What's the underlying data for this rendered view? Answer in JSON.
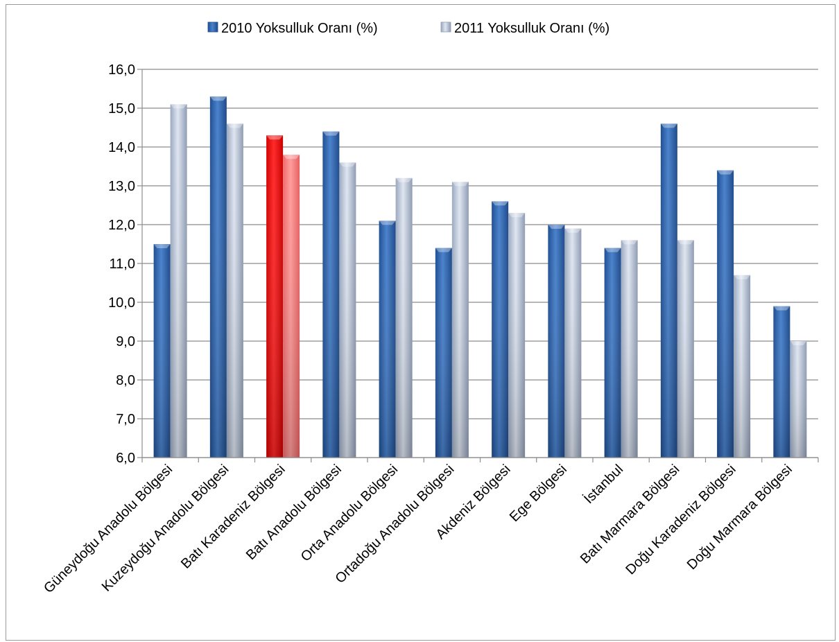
{
  "chart_data": {
    "type": "bar",
    "title": "",
    "xlabel": "",
    "ylabel": "",
    "ylim": [
      6,
      16
    ],
    "y_ticks": [
      "6,0",
      "7,0",
      "8,0",
      "9,0",
      "10,0",
      "11,0",
      "12,0",
      "13,0",
      "14,0",
      "15,0",
      "16,0"
    ],
    "grid": true,
    "legend_position": "top",
    "categories": [
      "Güneydoğu Anadolu Bölgesi",
      "Kuzeydoğu Anadolu Bölgesi",
      "Batı Karadeniz Bölgesi",
      "Batı Anadolu Bölgesi",
      "Orta Anadolu Bölgesi",
      "Ortadoğu Anadolu Bölgesi",
      "Akdeniz Bölgesi",
      "Ege Bölgesi",
      "İstanbul",
      "Batı Marmara Bölgesi",
      "Doğu Karadeniz Bölgesi",
      "Doğu Marmara Bölgesi"
    ],
    "series": [
      {
        "name": "2010 Yoksulluk Oranı (%)",
        "color": "#2e63ad",
        "values": [
          11.5,
          15.3,
          14.3,
          14.4,
          12.1,
          11.4,
          12.6,
          12.0,
          11.4,
          14.6,
          13.4,
          9.9
        ]
      },
      {
        "name": "2011 Yoksulluk Oranı (%)",
        "color": "#b8c5da",
        "values": [
          15.1,
          14.6,
          13.8,
          13.6,
          13.2,
          13.1,
          12.3,
          11.9,
          11.6,
          11.6,
          10.7,
          9.0
        ]
      }
    ],
    "highlight": {
      "category_index": 2,
      "colors": [
        "#ff0000",
        "#ff7f7f"
      ]
    }
  }
}
